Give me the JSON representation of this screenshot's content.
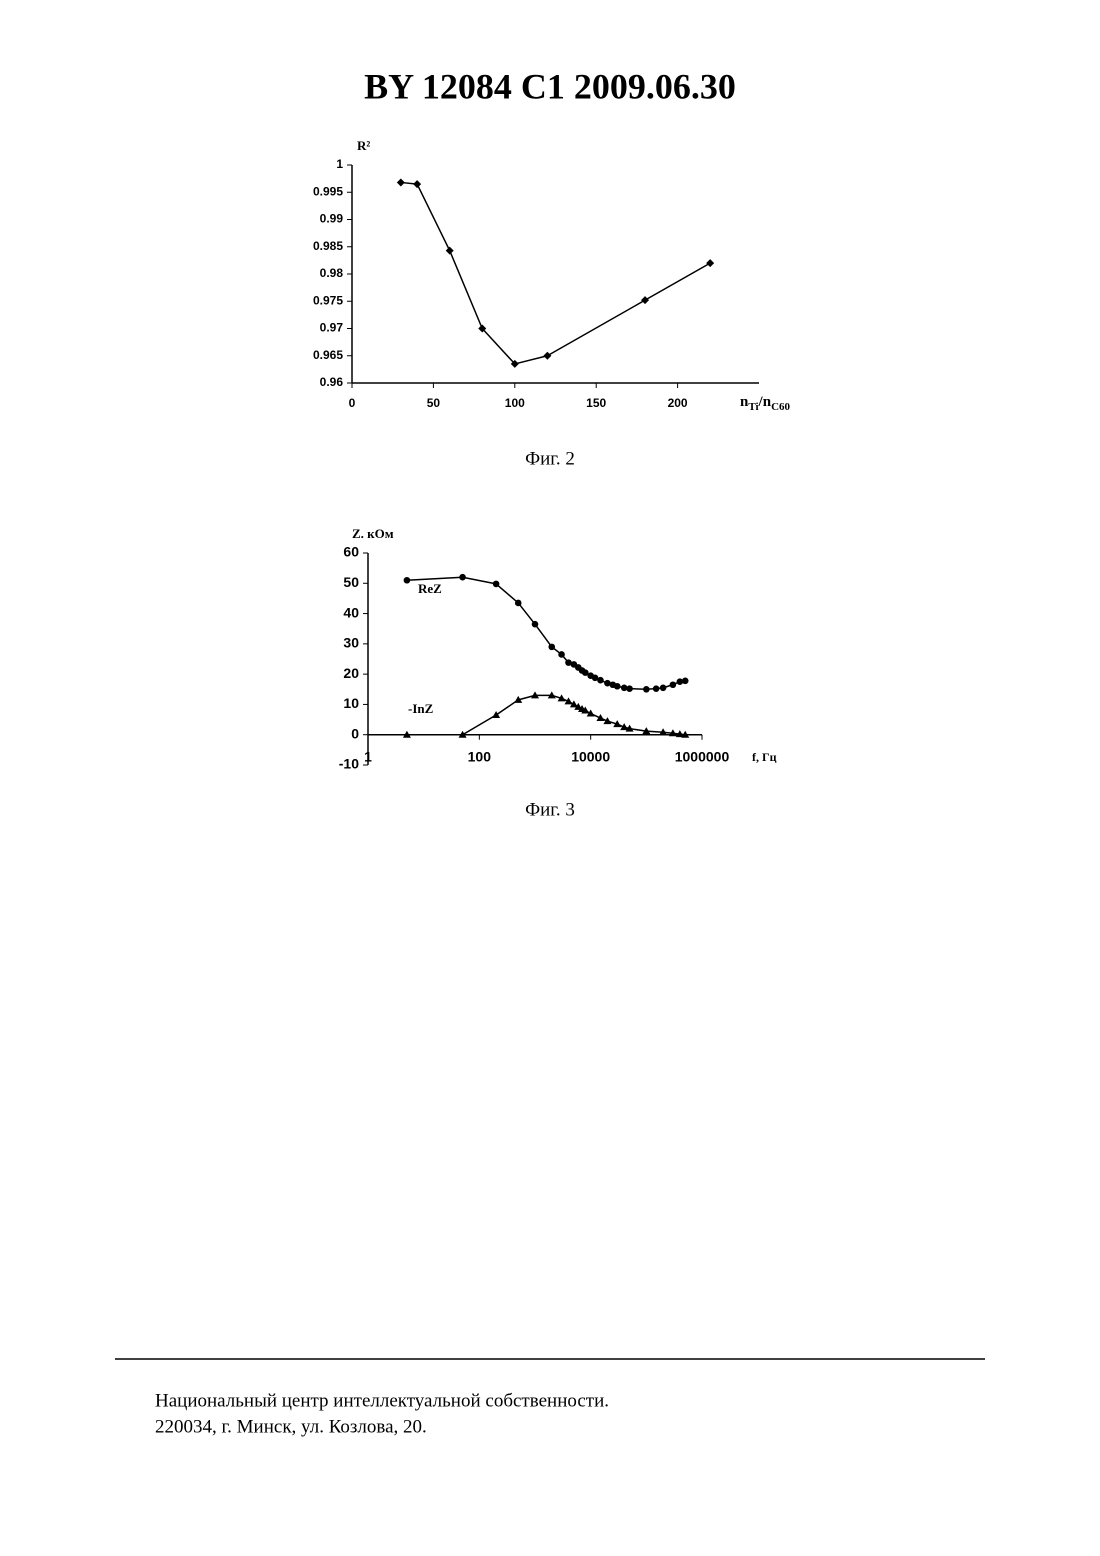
{
  "header": {
    "title": "BY  12084  C1  2009.06.30"
  },
  "chart_data": [
    {
      "type": "line",
      "y_label": "R²",
      "x_label": [
        "n",
        "Ti",
        "/n",
        "C60"
      ],
      "x": [
        30,
        40,
        60,
        80,
        100,
        120,
        180,
        220
      ],
      "series": [
        {
          "name": null,
          "color": "#000000",
          "marker": "diamond",
          "values": [
            0.9968,
            0.9965,
            0.9843,
            0.97,
            0.9635,
            0.965,
            0.9752,
            0.982
          ]
        }
      ],
      "xlim": [
        0,
        250
      ],
      "xticks": [
        0,
        50,
        100,
        150,
        200
      ],
      "ylim": [
        0.96,
        1
      ],
      "yticks": [
        0.96,
        0.965,
        0.97,
        0.975,
        0.98,
        0.985,
        0.99,
        0.995,
        1
      ]
    },
    {
      "type": "line",
      "y_label": "Z. кОм",
      "x_label": "f, Гц",
      "xscale": "log",
      "series": [
        {
          "name": "ReZ",
          "color": "#000000",
          "marker": "circle",
          "x": [
            5,
            50,
            200,
            500,
            1000,
            2000,
            3000,
            4000,
            5000,
            6000,
            7000,
            8000,
            10000,
            12000,
            15000,
            20000,
            25000,
            30000,
            40000,
            50000,
            100000,
            150000,
            200000,
            300000,
            400000,
            500000
          ],
          "values": [
            51,
            52,
            49.8,
            43.5,
            36.5,
            29,
            26.5,
            23.8,
            23.2,
            22.2,
            21.2,
            20.5,
            19.5,
            18.8,
            18,
            17,
            16.5,
            16,
            15.5,
            15.2,
            15,
            15.2,
            15.5,
            16.5,
            17.5,
            17.8
          ]
        },
        {
          "name": "-InZ",
          "color": "#000000",
          "marker": "triangle",
          "x": [
            5,
            50,
            200,
            500,
            1000,
            2000,
            3000,
            4000,
            5000,
            6000,
            7000,
            8000,
            10000,
            15000,
            20000,
            30000,
            40000,
            50000,
            100000,
            200000,
            300000,
            400000,
            500000
          ],
          "values": [
            0,
            0,
            6.5,
            11.5,
            13,
            13,
            12,
            11,
            10,
            9.2,
            8.5,
            8,
            7,
            5.5,
            4.5,
            3.5,
            2.5,
            2,
            1.2,
            0.8,
            0.5,
            0.2,
            0
          ]
        }
      ],
      "xlim": [
        1,
        1000000
      ],
      "xticks": [
        1,
        100,
        10000,
        1000000
      ],
      "ylim": [
        -10,
        60
      ],
      "yticks": [
        -10,
        0,
        10,
        20,
        30,
        40,
        50,
        60
      ]
    }
  ],
  "captions": [
    "Фиг. 2",
    "Фиг. 3"
  ],
  "footer": {
    "lines": [
      "Национальный центр интеллектуальной собственности.",
      "220034, г. Минск, ул. Козлова, 20."
    ]
  }
}
